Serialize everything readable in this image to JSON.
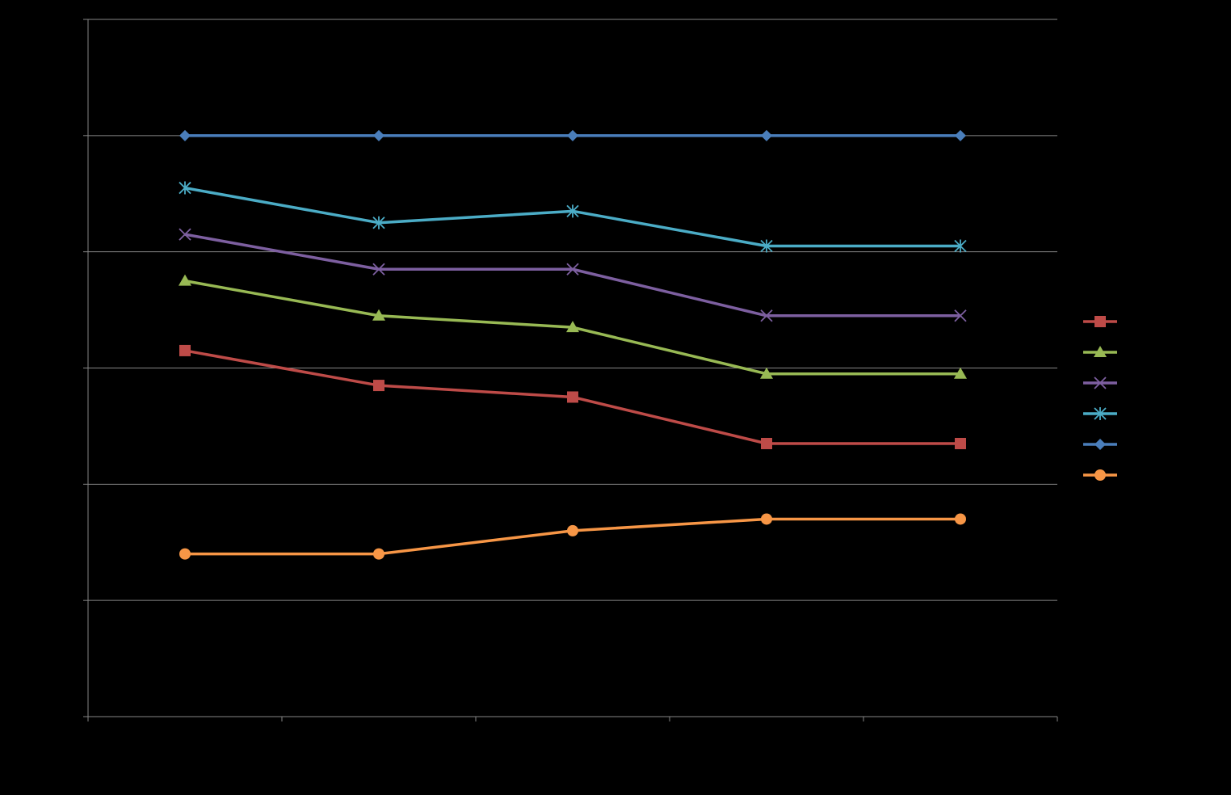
{
  "chart_data": {
    "type": "line",
    "title": "",
    "xlabel": "",
    "ylabel": "",
    "x": [
      1,
      2,
      3,
      4,
      5
    ],
    "xlim": [
      0.5,
      5.5
    ],
    "ylim": [
      0,
      6
    ],
    "grid": true,
    "legend_position": "right",
    "x_tick_labels": [],
    "y_tick_labels": [],
    "series": [
      {
        "marker": "square",
        "color": "#be4b48",
        "values": [
          3.15,
          2.85,
          2.75,
          2.35,
          2.35
        ]
      },
      {
        "marker": "triangle",
        "color": "#98b954",
        "values": [
          3.75,
          3.45,
          3.35,
          2.95,
          2.95
        ]
      },
      {
        "marker": "x",
        "color": "#7d5fa0",
        "values": [
          4.15,
          3.85,
          3.85,
          3.45,
          3.45
        ]
      },
      {
        "marker": "star",
        "color": "#4bacc6",
        "values": [
          4.55,
          4.25,
          4.35,
          4.05,
          4.05
        ]
      },
      {
        "marker": "diamond",
        "color": "#4a7ebb",
        "values": [
          5.0,
          5.0,
          5.0,
          5.0,
          5.0
        ]
      },
      {
        "marker": "circle",
        "color": "#f79646",
        "values": [
          1.4,
          1.4,
          1.6,
          1.7,
          1.7
        ]
      }
    ]
  }
}
